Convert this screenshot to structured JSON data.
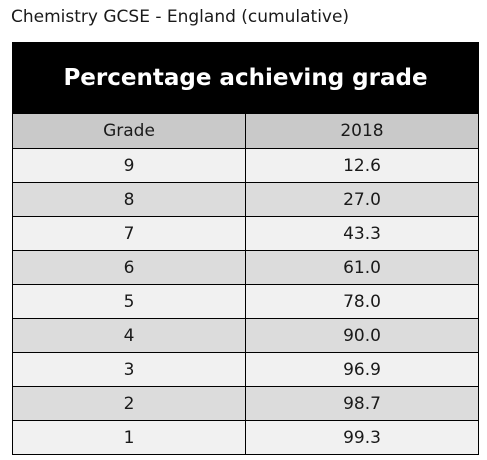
{
  "page_title": "Chemistry GCSE - England (cumulative)",
  "chart_data": {
    "type": "table",
    "title": "Percentage achieving grade",
    "columns": [
      "Grade",
      "2018"
    ],
    "rows": [
      [
        "9",
        "12.6"
      ],
      [
        "8",
        "27.0"
      ],
      [
        "7",
        "43.3"
      ],
      [
        "6",
        "61.0"
      ],
      [
        "5",
        "78.0"
      ],
      [
        "4",
        "90.0"
      ],
      [
        "3",
        "96.9"
      ],
      [
        "2",
        "98.7"
      ],
      [
        "1",
        "99.3"
      ]
    ]
  },
  "colors": {
    "banner_bg": "#000000",
    "banner_text": "#ffffff",
    "header_bg": "#c9c9c9",
    "row_light": "#f1f1f1",
    "row_dark": "#dcdcdc"
  }
}
